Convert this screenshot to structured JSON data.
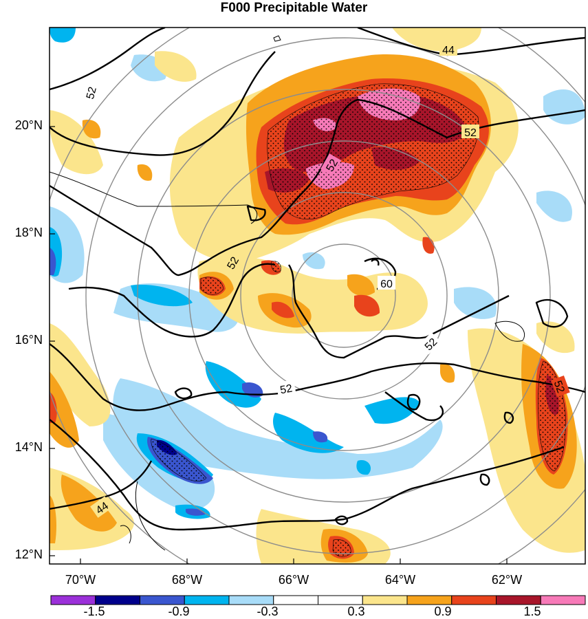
{
  "title": "F000 Precipitable Water",
  "latitude_labels": [
    "20°N",
    "18°N",
    "16°N",
    "14°N",
    "12°N"
  ],
  "longitude_labels": [
    "70°W",
    "68°W",
    "66°W",
    "64°W",
    "62°W"
  ],
  "contour_labels": [
    "44",
    "52",
    "52",
    "52",
    "52",
    "60",
    "52",
    "52",
    "52",
    "44"
  ],
  "colorbar": {
    "colors": [
      "#9b30d9",
      "#00008b",
      "#3a56cf",
      "#00b4ef",
      "#a8dcf8",
      "#ffffff",
      "#ffffff",
      "#fbe58c",
      "#f6a31c",
      "#e8431c",
      "#a8152a",
      "#f77ab8"
    ],
    "labels": [
      "-1.5",
      "-0.9",
      "-0.3",
      "0.3",
      "0.9",
      "1.5"
    ]
  },
  "palette": {
    "light_blue": "#a8dcf8",
    "blue": "#00b4ef",
    "dark_blue": "#3a56cf",
    "navy": "#00008b",
    "yellow": "#fbe58c",
    "orange": "#f6a31c",
    "red": "#e8431c",
    "dark_red": "#a8152a",
    "pink": "#f77ab8"
  }
}
